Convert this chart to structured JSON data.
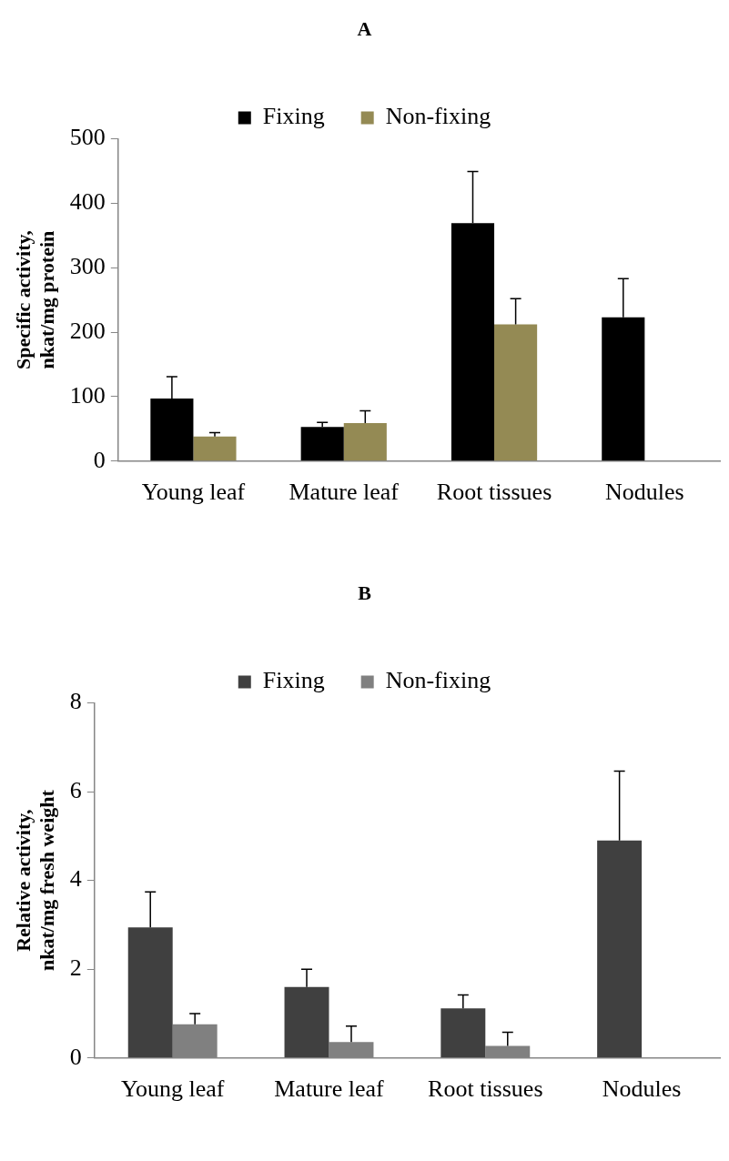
{
  "chart_data": [
    {
      "type": "bar",
      "title": "A",
      "ylabel": "Specific activity,\nnkat/mg protein",
      "categories": [
        "Young leaf",
        "Mature leaf",
        "Root tissues",
        "Nodules"
      ],
      "series": [
        {
          "name": "Fixing",
          "color": "#000000",
          "values": [
            97,
            53,
            369,
            223
          ],
          "errors": [
            [
              97,
              131
            ],
            [
              53,
              60
            ],
            [
              369,
              449
            ],
            [
              223,
              283
            ]
          ]
        },
        {
          "name": "Non-fixing",
          "color": "#948a54",
          "values": [
            38,
            59,
            212,
            null
          ],
          "errors": [
            [
              38,
              44
            ],
            [
              59,
              78
            ],
            [
              212,
              252
            ],
            null
          ]
        }
      ],
      "ylim": [
        0,
        500
      ],
      "yticks": [
        0,
        100,
        200,
        300,
        400,
        500
      ],
      "grid": false,
      "legend": "top"
    },
    {
      "type": "bar",
      "title": "B",
      "ylabel": "Relative activity,\nnkat/mg fresh weight",
      "categories": [
        "Young leaf",
        "Mature leaf",
        "Root tissues",
        "Nodules"
      ],
      "series": [
        {
          "name": "Fixing",
          "color": "#404040",
          "values": [
            2.94,
            1.6,
            1.12,
            4.9
          ],
          "errors": [
            [
              2.94,
              3.74
            ],
            [
              1.6,
              2.0
            ],
            [
              1.12,
              1.42
            ],
            [
              4.9,
              6.46
            ]
          ]
        },
        {
          "name": "Non-fixing",
          "color": "#808080",
          "values": [
            0.76,
            0.36,
            0.27,
            null
          ],
          "errors": [
            [
              0.76,
              1.0
            ],
            [
              0.36,
              0.72
            ],
            [
              0.27,
              0.58
            ],
            null
          ]
        }
      ],
      "ylim": [
        0,
        8
      ],
      "yticks": [
        0,
        2,
        4,
        6,
        8
      ],
      "grid": false,
      "legend": "top"
    }
  ]
}
